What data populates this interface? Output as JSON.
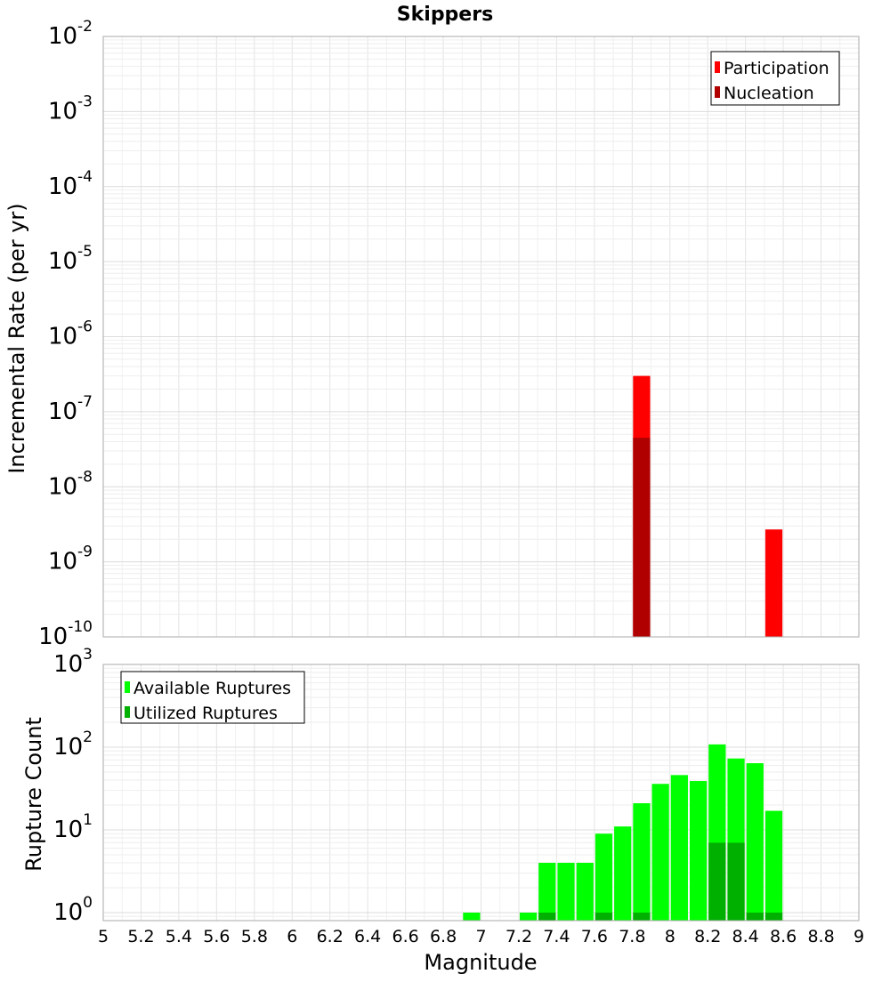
{
  "chart_data": [
    {
      "type": "bar",
      "title": "Skippers",
      "ylabel": "Incremental Rate (per yr)",
      "xlabel": "",
      "yscale": "log",
      "ylim": [
        1e-10,
        0.01
      ],
      "xlim": [
        5,
        9
      ],
      "grid": true,
      "legend_position": "top-right",
      "y_ticks": [
        {
          "base": "10",
          "exp": "-10"
        },
        {
          "base": "10",
          "exp": "-9"
        },
        {
          "base": "10",
          "exp": "-8"
        },
        {
          "base": "10",
          "exp": "-7"
        },
        {
          "base": "10",
          "exp": "-6"
        },
        {
          "base": "10",
          "exp": "-5"
        },
        {
          "base": "10",
          "exp": "-4"
        },
        {
          "base": "10",
          "exp": "-3"
        },
        {
          "base": "10",
          "exp": "-2"
        }
      ],
      "bar_width": 0.1,
      "series": [
        {
          "name": "Participation",
          "color": "#ff0000",
          "x": [
            7.85,
            8.55
          ],
          "values": [
            3e-07,
            2.7e-09
          ]
        },
        {
          "name": "Nucleation",
          "color": "#b00000",
          "x": [
            7.85
          ],
          "values": [
            4.5e-08
          ]
        }
      ]
    },
    {
      "type": "bar",
      "title": "",
      "ylabel": "Rupture Count",
      "xlabel": "Magnitude",
      "yscale": "log",
      "ylim": [
        0.8,
        1000
      ],
      "xlim": [
        5,
        9
      ],
      "grid": true,
      "legend_position": "top-left",
      "y_ticks": [
        {
          "value": 1,
          "base": "10",
          "exp": "0"
        },
        {
          "value": 10,
          "base": "10",
          "exp": "1"
        },
        {
          "value": 100,
          "base": "10",
          "exp": "2"
        },
        {
          "value": 1000,
          "base": "10",
          "exp": "3"
        }
      ],
      "x_ticks": [
        "5",
        "5.2",
        "5.4",
        "5.6",
        "5.8",
        "6",
        "6.2",
        "6.4",
        "6.6",
        "6.8",
        "7",
        "7.2",
        "7.4",
        "7.6",
        "7.8",
        "8",
        "8.2",
        "8.4",
        "8.6",
        "8.8",
        "9"
      ],
      "bar_width": 0.1,
      "series": [
        {
          "name": "Available Ruptures",
          "color": "#00ff00",
          "x": [
            6.95,
            7.25,
            7.35,
            7.45,
            7.55,
            7.65,
            7.75,
            7.85,
            7.95,
            8.05,
            8.15,
            8.25,
            8.35,
            8.45,
            8.55
          ],
          "values": [
            1,
            1,
            4,
            4,
            4,
            9,
            11,
            21,
            36,
            46,
            39,
            108,
            73,
            64,
            17
          ]
        },
        {
          "name": "Utilized Ruptures",
          "color": "#00b000",
          "x": [
            7.35,
            7.65,
            7.85,
            8.25,
            8.35,
            8.45,
            8.55
          ],
          "values": [
            1,
            1,
            1,
            7,
            7,
            1,
            1
          ]
        }
      ]
    }
  ]
}
